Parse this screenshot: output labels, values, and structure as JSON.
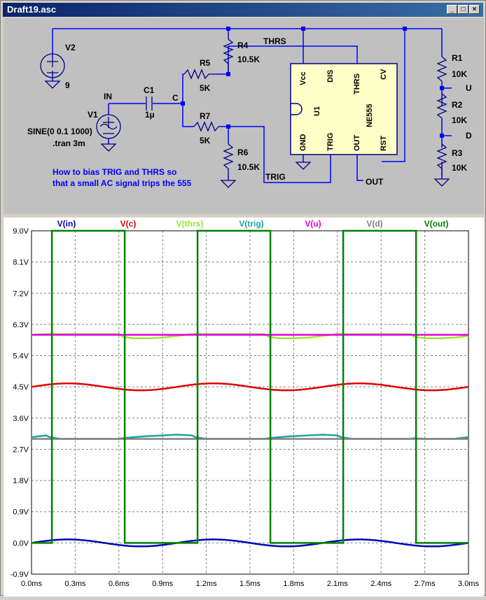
{
  "window": {
    "title": "Draft19.asc",
    "buttons": [
      "_",
      "□",
      "×"
    ]
  },
  "schematic": {
    "components": {
      "v2_name": "V2",
      "v2_value": "9",
      "v1_name": "V1",
      "v1_value": "SINE(0 0.1 1000)",
      "directive": ".tran 3m",
      "c1_name": "C1",
      "c1_value": "1µ",
      "r4_name": "R4",
      "r4_value": "10.5K",
      "r5_name": "R5",
      "r5_value": "5K",
      "r7_name": "R7",
      "r7_value": "5K",
      "r6_name": "R6",
      "r6_value": "10.5K",
      "r1_name": "R1",
      "r1_value": "10K",
      "r2_name": "R2",
      "r2_value": "10K",
      "r3_name": "R3",
      "r3_value": "10K",
      "u1_name": "U1",
      "u1_part": "NE555"
    },
    "pins": {
      "vcc": "Vcc",
      "dis": "DIS",
      "thrs": "THRS",
      "cv": "CV",
      "gnd": "GND",
      "trig": "TRIG",
      "out": "OUT",
      "rst": "RST"
    },
    "net_labels": {
      "in": "IN",
      "c": "C",
      "thrs": "THRS",
      "trig": "TRIG",
      "out": "OUT",
      "u": "U",
      "d": "D"
    },
    "comment": [
      "How to bias TRIG and THRS so",
      "that a small AC signal trips the 555"
    ],
    "comment_color": "#0000ff"
  },
  "chart_data": {
    "type": "line",
    "xlabel": "",
    "ylabel": "",
    "xlim": [
      0.0,
      3.0
    ],
    "ylim": [
      -0.9,
      9.0
    ],
    "x_ticks": [
      "0.0ms",
      "0.3ms",
      "0.6ms",
      "0.9ms",
      "1.2ms",
      "1.5ms",
      "1.8ms",
      "2.1ms",
      "2.4ms",
      "2.7ms",
      "3.0ms"
    ],
    "y_ticks": [
      "9.0V",
      "8.1V",
      "7.2V",
      "6.3V",
      "5.4V",
      "4.5V",
      "3.6V",
      "2.7V",
      "1.8V",
      "0.9V",
      "0.0V",
      "-0.9V"
    ],
    "grid": true,
    "legend_placement": "top",
    "series": [
      {
        "name": "V(in)",
        "color": "#0000c0",
        "kind": "sine",
        "offset": 0.0,
        "amplitude": 0.1,
        "frequency_khz": 1.0
      },
      {
        "name": "V(c)",
        "color": "#e00000",
        "kind": "sine",
        "offset": 4.5,
        "amplitude": 0.1,
        "frequency_khz": 1.0
      },
      {
        "name": "V(thrs)",
        "color": "#a0e030",
        "kind": "piecewise",
        "x": [
          0.0,
          0.1,
          0.125,
          0.2,
          0.3,
          0.4,
          0.5,
          0.6,
          0.625,
          0.7,
          0.8,
          0.9,
          1.0,
          1.1,
          1.125,
          1.2,
          1.3,
          1.4,
          1.5,
          1.6,
          1.625,
          1.7,
          1.8,
          1.9,
          2.0,
          2.1,
          2.125,
          2.2,
          2.3,
          2.4,
          2.5,
          2.6,
          2.625,
          2.7,
          2.8,
          2.9,
          3.0
        ],
        "y": [
          6.0,
          6.02,
          6.02,
          6.02,
          6.02,
          6.02,
          6.02,
          6.02,
          5.95,
          5.9,
          5.9,
          5.92,
          5.97,
          6.02,
          6.02,
          6.02,
          6.02,
          6.02,
          6.02,
          6.02,
          5.95,
          5.9,
          5.9,
          5.92,
          5.97,
          6.02,
          6.02,
          6.02,
          6.02,
          6.02,
          6.02,
          6.02,
          5.95,
          5.9,
          5.9,
          5.92,
          5.97
        ]
      },
      {
        "name": "V(trig)",
        "color": "#20a0a0",
        "kind": "piecewise",
        "x": [
          0.0,
          0.1,
          0.125,
          0.2,
          0.3,
          0.4,
          0.5,
          0.6,
          0.625,
          0.7,
          0.8,
          0.9,
          1.0,
          1.1,
          1.125,
          1.2,
          1.3,
          1.4,
          1.5,
          1.6,
          1.625,
          1.7,
          1.8,
          1.9,
          2.0,
          2.1,
          2.125,
          2.2,
          2.3,
          2.4,
          2.5,
          2.6,
          2.625,
          2.7,
          2.8,
          2.9,
          3.0
        ],
        "y": [
          3.05,
          3.1,
          3.05,
          3.0,
          3.0,
          3.0,
          3.0,
          3.0,
          3.02,
          3.05,
          3.08,
          3.1,
          3.12,
          3.1,
          3.05,
          3.0,
          3.0,
          3.0,
          3.0,
          3.0,
          3.02,
          3.05,
          3.08,
          3.1,
          3.12,
          3.1,
          3.05,
          3.0,
          3.0,
          3.0,
          3.0,
          3.0,
          3.02,
          3.0,
          3.0,
          3.0,
          3.05
        ]
      },
      {
        "name": "V(u)",
        "color": "#e000e0",
        "kind": "constant",
        "value": 6.0
      },
      {
        "name": "V(d)",
        "color": "#808080",
        "kind": "constant",
        "value": 3.0
      },
      {
        "name": "V(out)",
        "color": "#008000",
        "kind": "square",
        "x": [
          0.0,
          0.14,
          0.14,
          0.64,
          0.64,
          1.14,
          1.14,
          1.64,
          1.64,
          2.14,
          2.14,
          2.64,
          2.64,
          3.0
        ],
        "y": [
          0.0,
          0.0,
          9.0,
          9.0,
          0.0,
          0.0,
          9.0,
          9.0,
          0.0,
          0.0,
          9.0,
          9.0,
          0.0,
          0.0
        ]
      }
    ]
  }
}
